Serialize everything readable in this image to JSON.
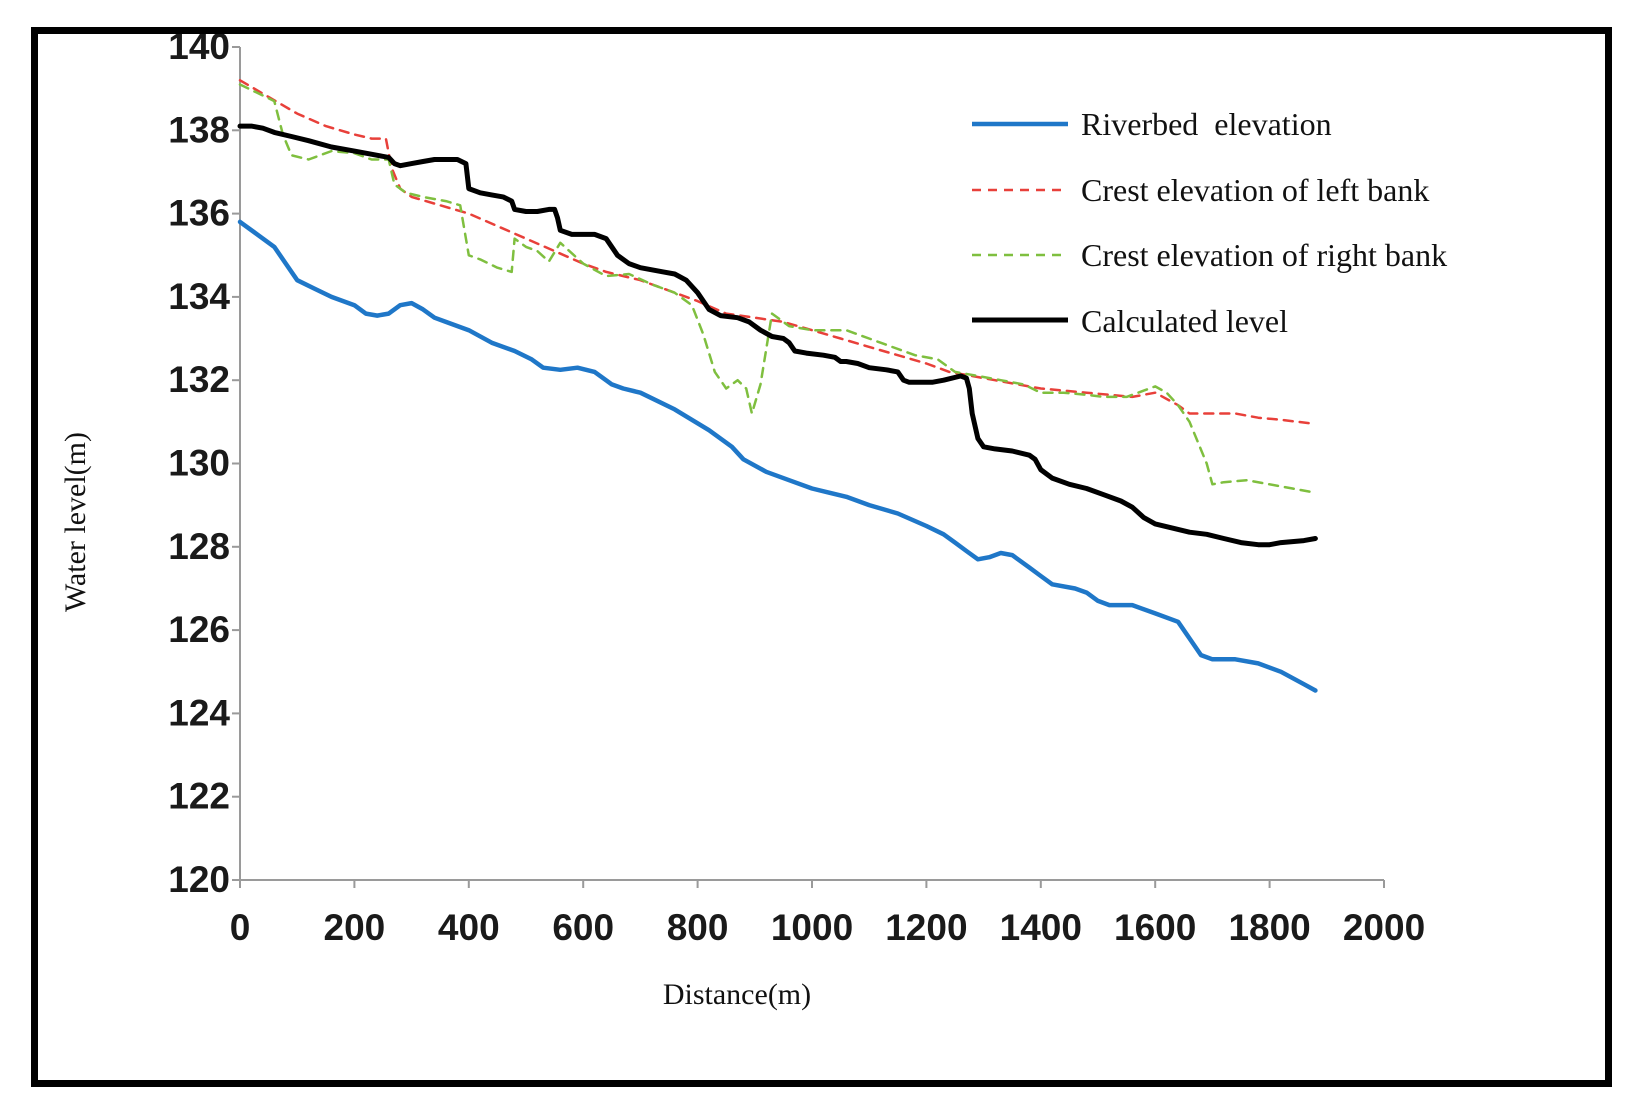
{
  "chart_data": {
    "type": "line",
    "title": "",
    "xlabel": "Distance(m)",
    "ylabel": "Water level(m)",
    "xlim": [
      0,
      2000
    ],
    "ylim": [
      120,
      140
    ],
    "x_ticks": [
      0,
      200,
      400,
      600,
      800,
      1000,
      1200,
      1400,
      1600,
      1800,
      2000
    ],
    "y_ticks": [
      120,
      122,
      124,
      126,
      128,
      130,
      132,
      134,
      136,
      138,
      140
    ],
    "x_tick_labels": [
      "0",
      "200",
      "400",
      "600",
      "800",
      "1000",
      "1200",
      "1400",
      "1600",
      "1800",
      "2000"
    ],
    "y_tick_labels": [
      "120",
      "122",
      "124",
      "126",
      "128",
      "130",
      "132",
      "134",
      "136",
      "138",
      "140"
    ],
    "grid": false,
    "legend_position": "top-right",
    "series": [
      {
        "name": "Riverbed  elevation",
        "color": "#1f77c8",
        "style": "solid",
        "x": [
          0,
          30,
          60,
          80,
          100,
          130,
          160,
          200,
          220,
          240,
          260,
          280,
          300,
          320,
          340,
          360,
          400,
          440,
          480,
          510,
          530,
          560,
          590,
          620,
          650,
          670,
          700,
          760,
          820,
          860,
          880,
          920,
          960,
          1000,
          1030,
          1060,
          1100,
          1150,
          1200,
          1230,
          1250,
          1270,
          1290,
          1310,
          1330,
          1350,
          1380,
          1400,
          1420,
          1460,
          1480,
          1500,
          1520,
          1560,
          1600,
          1640,
          1660,
          1680,
          1700,
          1720,
          1740,
          1780,
          1820,
          1860,
          1880
        ],
        "y": [
          135.8,
          135.5,
          135.2,
          134.8,
          134.4,
          134.2,
          134.0,
          133.8,
          133.6,
          133.55,
          133.6,
          133.8,
          133.85,
          133.7,
          133.5,
          133.4,
          133.2,
          132.9,
          132.7,
          132.5,
          132.3,
          132.25,
          132.3,
          132.2,
          131.9,
          131.8,
          131.7,
          131.3,
          130.8,
          130.4,
          130.1,
          129.8,
          129.6,
          129.4,
          129.3,
          129.2,
          129.0,
          128.8,
          128.5,
          128.3,
          128.1,
          127.9,
          127.7,
          127.75,
          127.85,
          127.8,
          127.5,
          127.3,
          127.1,
          127.0,
          126.9,
          126.7,
          126.6,
          126.6,
          126.4,
          126.2,
          125.8,
          125.4,
          125.3,
          125.3,
          125.3,
          125.2,
          125.0,
          124.7,
          124.55
        ]
      },
      {
        "name": "Crest elevation of left bank",
        "color": "#e8403a",
        "style": "dashed",
        "x": [
          0,
          50,
          100,
          150,
          200,
          230,
          255,
          265,
          280,
          300,
          350,
          400,
          450,
          500,
          550,
          600,
          640,
          700,
          760,
          800,
          850,
          900,
          950,
          1000,
          1050,
          1100,
          1150,
          1200,
          1240,
          1280,
          1320,
          1360,
          1400,
          1440,
          1480,
          1520,
          1560,
          1600,
          1640,
          1660,
          1700,
          1740,
          1780,
          1820,
          1880
        ],
        "y": [
          139.2,
          138.8,
          138.4,
          138.1,
          137.9,
          137.8,
          137.8,
          137.1,
          136.6,
          136.4,
          136.2,
          136.0,
          135.7,
          135.4,
          135.1,
          134.8,
          134.6,
          134.4,
          134.1,
          133.9,
          133.6,
          133.5,
          133.4,
          133.2,
          133.0,
          132.8,
          132.6,
          132.4,
          132.2,
          132.1,
          132.0,
          131.9,
          131.8,
          131.75,
          131.7,
          131.65,
          131.6,
          131.7,
          131.4,
          131.2,
          131.2,
          131.2,
          131.1,
          131.05,
          130.95
        ]
      },
      {
        "name": "Crest elevation of right bank",
        "color": "#7fbf3f",
        "style": "dashed",
        "x": [
          0,
          30,
          60,
          75,
          90,
          120,
          160,
          200,
          230,
          260,
          270,
          290,
          320,
          360,
          385,
          400,
          420,
          450,
          475,
          480,
          500,
          520,
          540,
          560,
          600,
          640,
          680,
          720,
          760,
          790,
          810,
          830,
          850,
          870,
          885,
          895,
          910,
          930,
          960,
          1000,
          1060,
          1120,
          1180,
          1220,
          1250,
          1290,
          1330,
          1370,
          1400,
          1440,
          1480,
          1510,
          1550,
          1580,
          1600,
          1620,
          1640,
          1660,
          1690,
          1700,
          1720,
          1760,
          1800,
          1840,
          1880
        ],
        "y": [
          139.1,
          138.9,
          138.7,
          137.9,
          137.4,
          137.3,
          137.5,
          137.45,
          137.3,
          137.3,
          136.7,
          136.5,
          136.4,
          136.3,
          136.2,
          135.0,
          134.9,
          134.7,
          134.6,
          135.4,
          135.2,
          135.1,
          134.85,
          135.3,
          134.8,
          134.5,
          134.55,
          134.3,
          134.1,
          133.8,
          133.1,
          132.2,
          131.8,
          132.0,
          131.8,
          131.2,
          131.9,
          133.6,
          133.3,
          133.2,
          133.2,
          132.9,
          132.6,
          132.5,
          132.2,
          132.1,
          132.0,
          131.9,
          131.7,
          131.7,
          131.65,
          131.6,
          131.6,
          131.75,
          131.85,
          131.7,
          131.4,
          131.0,
          130.0,
          129.5,
          129.55,
          129.6,
          129.5,
          129.4,
          129.3
        ]
      },
      {
        "name": "Calculated level",
        "color": "#000000",
        "style": "solid",
        "x": [
          0,
          20,
          40,
          60,
          90,
          120,
          160,
          200,
          240,
          260,
          270,
          280,
          300,
          320,
          340,
          360,
          380,
          395,
          400,
          420,
          440,
          460,
          475,
          480,
          500,
          520,
          540,
          550,
          555,
          560,
          580,
          600,
          620,
          640,
          650,
          660,
          680,
          700,
          720,
          740,
          760,
          780,
          800,
          820,
          840,
          870,
          890,
          910,
          930,
          950,
          960,
          970,
          990,
          1020,
          1040,
          1050,
          1060,
          1080,
          1100,
          1130,
          1150,
          1160,
          1170,
          1190,
          1210,
          1230,
          1260,
          1270,
          1275,
          1280,
          1290,
          1300,
          1320,
          1350,
          1380,
          1390,
          1400,
          1420,
          1450,
          1480,
          1510,
          1540,
          1560,
          1580,
          1600,
          1630,
          1660,
          1690,
          1720,
          1750,
          1780,
          1800,
          1820,
          1860,
          1880
        ],
        "y": [
          138.1,
          138.1,
          138.05,
          137.95,
          137.85,
          137.75,
          137.6,
          137.5,
          137.4,
          137.35,
          137.2,
          137.15,
          137.2,
          137.25,
          137.3,
          137.3,
          137.3,
          137.2,
          136.6,
          136.5,
          136.45,
          136.4,
          136.3,
          136.1,
          136.05,
          136.05,
          136.1,
          136.1,
          135.9,
          135.6,
          135.5,
          135.5,
          135.5,
          135.4,
          135.2,
          135.0,
          134.8,
          134.7,
          134.65,
          134.6,
          134.55,
          134.4,
          134.1,
          133.7,
          133.55,
          133.5,
          133.4,
          133.2,
          133.05,
          133.0,
          132.9,
          132.7,
          132.65,
          132.6,
          132.55,
          132.45,
          132.45,
          132.4,
          132.3,
          132.25,
          132.2,
          132.0,
          131.95,
          131.95,
          131.95,
          132.0,
          132.1,
          132.05,
          131.8,
          131.2,
          130.6,
          130.4,
          130.35,
          130.3,
          130.2,
          130.1,
          129.85,
          129.65,
          129.5,
          129.4,
          129.25,
          129.1,
          128.95,
          128.7,
          128.55,
          128.45,
          128.35,
          128.3,
          128.2,
          128.1,
          128.05,
          128.05,
          128.1,
          128.15,
          128.2
        ]
      }
    ]
  }
}
